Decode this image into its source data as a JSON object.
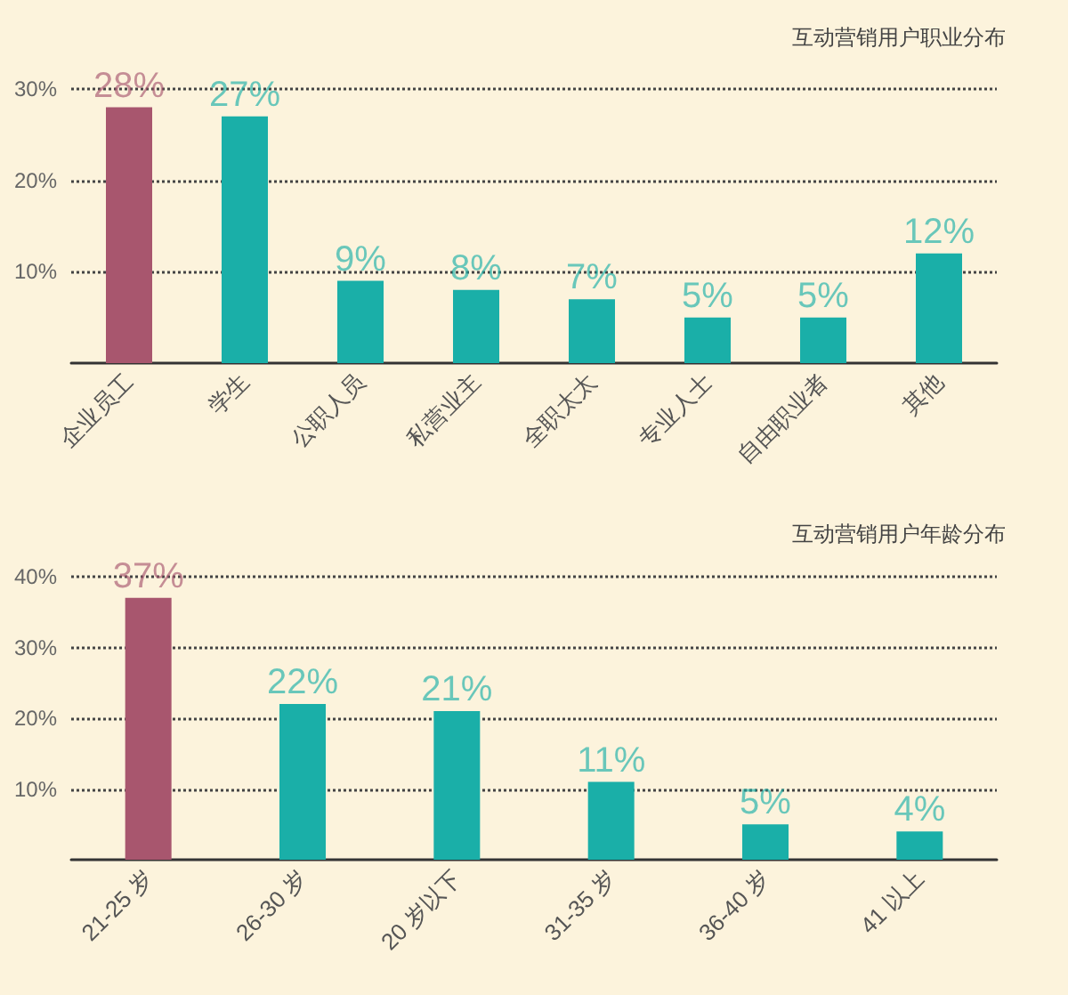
{
  "chart_data": [
    {
      "type": "bar",
      "title": "互动营销用户职业分布",
      "categories": [
        "企业员工",
        "学生",
        "公职人员",
        "私营业主",
        "全职太太",
        "专业人士",
        "自由职业者",
        "其他"
      ],
      "values": [
        28,
        27,
        9,
        8,
        7,
        5,
        5,
        12
      ],
      "value_labels": [
        "28%",
        "27%",
        "9%",
        "8%",
        "7%",
        "5%",
        "5%",
        "12%"
      ],
      "colors": [
        "#a8566e",
        "#1aafa8",
        "#1aafa8",
        "#1aafa8",
        "#1aafa8",
        "#1aafa8",
        "#1aafa8",
        "#1aafa8"
      ],
      "ylim": [
        0,
        30
      ],
      "yticks": [
        {
          "value": 10,
          "label": "10%"
        },
        {
          "value": 20,
          "label": "20%"
        },
        {
          "value": 30,
          "label": "30%"
        }
      ],
      "grid": "y"
    },
    {
      "type": "bar",
      "title": "互动营销用户年龄分布",
      "categories": [
        "21-25 岁",
        "26-30 岁",
        "20 岁以下",
        "31-35 岁",
        "36-40 岁",
        "41 以上"
      ],
      "values": [
        37,
        22,
        21,
        11,
        5,
        4
      ],
      "value_labels": [
        "37%",
        "22%",
        "21%",
        "11%",
        "5%",
        "4%"
      ],
      "colors": [
        "#a8566e",
        "#1aafa8",
        "#1aafa8",
        "#1aafa8",
        "#1aafa8",
        "#1aafa8"
      ],
      "ylim": [
        0,
        40
      ],
      "yticks": [
        {
          "value": 10,
          "label": "10%"
        },
        {
          "value": 20,
          "label": "20%"
        },
        {
          "value": 30,
          "label": "30%"
        },
        {
          "value": 40,
          "label": "40%"
        }
      ],
      "grid": "y"
    }
  ]
}
